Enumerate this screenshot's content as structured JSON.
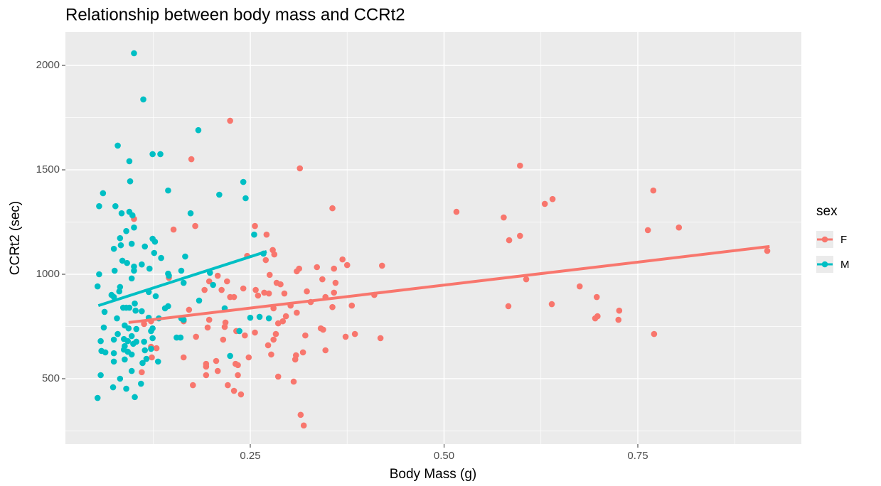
{
  "chart_data": {
    "type": "scatter",
    "title": "Relationship between body mass and CCRt2",
    "x_label": "Body Mass (g)",
    "y_label": "CCRt2 (sec)",
    "legend_title": "sex",
    "legend_position": "right",
    "xlim": [
      0.0115,
      0.961
    ],
    "ylim": [
      187,
      2160
    ],
    "xticks": [
      0.25,
      {
        "value": 0.5,
        "label": "0.50"
      },
      0.75
    ],
    "yticks": [
      500,
      1000,
      1500,
      2000
    ],
    "xminor": [
      0.125,
      0.375,
      0.625,
      0.875
    ],
    "yminor": [
      250,
      750,
      1250,
      1750
    ],
    "grid": true,
    "series": [
      {
        "name": "F",
        "color": "#F8766D",
        "x": [
          0.224,
          0.174,
          0.314,
          0.356,
          0.1,
          0.151,
          0.179,
          0.256,
          0.271,
          0.279,
          0.281,
          0.246,
          0.27,
          0.369,
          0.375,
          0.42,
          0.336,
          0.313,
          0.31,
          0.358,
          0.208,
          0.197,
          0.22,
          0.275,
          0.284,
          0.289,
          0.36,
          0.343,
          0.145,
          0.257,
          0.268,
          0.26,
          0.274,
          0.294,
          0.323,
          0.358,
          0.213,
          0.191,
          0.241,
          0.224,
          0.229,
          0.347,
          0.41,
          0.381,
          0.302,
          0.28,
          0.328,
          0.171,
          0.31,
          0.356,
          0.197,
          0.218,
          0.217,
          0.296,
          0.286,
          0.292,
          0.122,
          0.113,
          0.164,
          0.195,
          0.232,
          0.243,
          0.256,
          0.283,
          0.321,
          0.341,
          0.344,
          0.373,
          0.385,
          0.418,
          0.273,
          0.28,
          0.18,
          0.215,
          0.164,
          0.129,
          0.122,
          0.248,
          0.277,
          0.309,
          0.308,
          0.318,
          0.347,
          0.123,
          0.11,
          0.193,
          0.193,
          0.206,
          0.208,
          0.231,
          0.234,
          0.286,
          0.193,
          0.221,
          0.229,
          0.238,
          0.176,
          0.306,
          0.315,
          0.319,
          0.234,
          0.516,
          0.598,
          0.577,
          0.584,
          0.598,
          0.63,
          0.64,
          0.77,
          0.763,
          0.803,
          0.606,
          0.675,
          0.697,
          0.639,
          0.583,
          0.726,
          0.725,
          0.695,
          0.698,
          0.771,
          0.917
        ],
        "y": [
          1735,
          1551,
          1507,
          1316,
          1265,
          1214,
          1231,
          1231,
          1190,
          1116,
          1095,
          1088,
          1068,
          1071,
          1044,
          1041,
          1034,
          1027,
          1014,
          1027,
          993,
          966,
          966,
          997,
          959,
          952,
          959,
          976,
          983,
          925,
          912,
          898,
          908,
          908,
          918,
          912,
          925,
          925,
          932,
          891,
          891,
          891,
          901,
          850,
          850,
          837,
          867,
          830,
          816,
          843,
          782,
          769,
          748,
          799,
          765,
          775,
          775,
          762,
          775,
          745,
          728,
          707,
          721,
          714,
          707,
          741,
          735,
          701,
          714,
          694,
          660,
          687,
          701,
          687,
          602,
          646,
          653,
          602,
          616,
          612,
          592,
          626,
          636,
          602,
          531,
          571,
          558,
          585,
          537,
          571,
          565,
          510,
          517,
          469,
          442,
          425,
          469,
          486,
          327,
          276,
          517,
          1299,
          1520,
          1272,
          1163,
          1184,
          1337,
          1360,
          1401,
          1211,
          1224,
          976,
          942,
          891,
          857,
          847,
          826,
          782,
          789,
          799,
          714,
          1112
        ],
        "fit": {
          "x": [
            0.093,
            0.92
          ],
          "y": [
            769,
            1133
          ]
        }
      },
      {
        "name": "M",
        "color": "#00BFC4",
        "x": [
          0.1,
          0.112,
          0.183,
          0.079,
          0.124,
          0.134,
          0.094,
          0.241,
          0.095,
          0.144,
          0.06,
          0.244,
          0.21,
          0.055,
          0.076,
          0.173,
          0.084,
          0.094,
          0.098,
          0.1,
          0.09,
          0.255,
          0.124,
          0.127,
          0.082,
          0.097,
          0.114,
          0.074,
          0.083,
          0.267,
          0.126,
          0.135,
          0.166,
          0.085,
          0.091,
          0.1,
          0.11,
          0.12,
          0.075,
          0.1,
          0.161,
          0.055,
          0.097,
          0.144,
          0.145,
          0.198,
          0.164,
          0.053,
          0.082,
          0.202,
          0.071,
          0.081,
          0.074,
          0.119,
          0.128,
          0.184,
          0.101,
          0.086,
          0.094,
          0.09,
          0.102,
          0.11,
          0.062,
          0.14,
          0.144,
          0.217,
          0.078,
          0.119,
          0.25,
          0.262,
          0.274,
          0.132,
          0.161,
          0.061,
          0.088,
          0.093,
          0.103,
          0.124,
          0.164,
          0.079,
          0.097,
          0.122,
          0.236,
          0.155,
          0.16,
          0.057,
          0.074,
          0.087,
          0.092,
          0.103,
          0.113,
          0.124,
          0.088,
          0.099,
          0.058,
          0.063,
          0.074,
          0.087,
          0.092,
          0.114,
          0.122,
          0.074,
          0.088,
          0.097,
          0.111,
          0.116,
          0.131,
          0.224,
          0.057,
          0.082,
          0.097,
          0.109,
          0.073,
          0.09,
          0.101,
          0.053
        ],
        "y": [
          2058,
          1837,
          1690,
          1616,
          1575,
          1575,
          1541,
          1442,
          1445,
          1401,
          1388,
          1364,
          1381,
          1326,
          1326,
          1292,
          1292,
          1299,
          1282,
          1224,
          1207,
          1190,
          1170,
          1156,
          1173,
          1146,
          1133,
          1122,
          1139,
          1099,
          1102,
          1078,
          1085,
          1065,
          1054,
          1037,
          1047,
          1027,
          1017,
          1017,
          1017,
          1000,
          980,
          1003,
          993,
          1007,
          959,
          942,
          939,
          949,
          901,
          918,
          891,
          915,
          895,
          874,
          860,
          840,
          840,
          840,
          826,
          823,
          820,
          837,
          847,
          837,
          789,
          792,
          792,
          796,
          789,
          789,
          789,
          745,
          755,
          741,
          738,
          741,
          782,
          714,
          704,
          728,
          728,
          697,
          697,
          680,
          687,
          690,
          680,
          677,
          677,
          694,
          656,
          667,
          633,
          626,
          622,
          639,
          629,
          636,
          643,
          582,
          592,
          616,
          575,
          595,
          582,
          609,
          517,
          500,
          537,
          476,
          459,
          452,
          412,
          408
        ],
        "fit": {
          "x": [
            0.054,
            0.271
          ],
          "y": [
            850,
            1109
          ]
        }
      }
    ]
  }
}
